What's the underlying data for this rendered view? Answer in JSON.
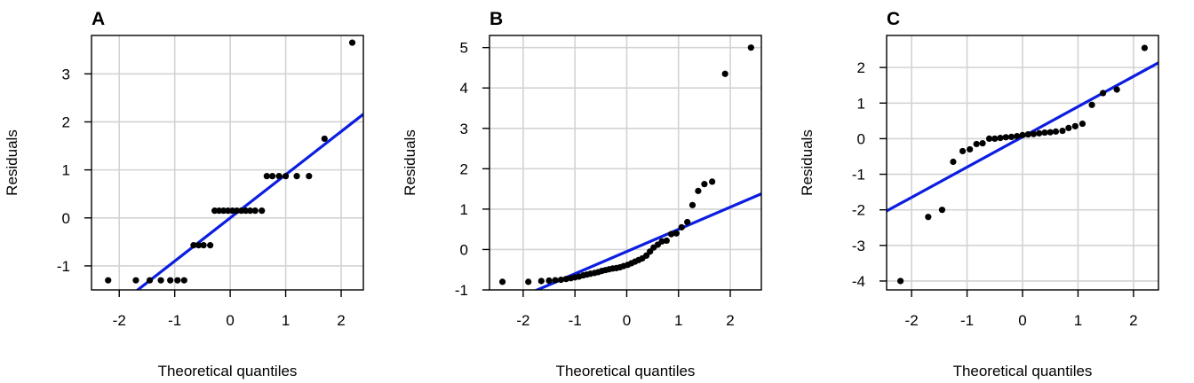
{
  "chart_data": [
    {
      "type": "scatter",
      "label": "A",
      "xlabel": "Theoretical quantiles",
      "ylabel": "Residuals",
      "xlim": [
        -2.5,
        2.4
      ],
      "ylim": [
        -1.5,
        3.8
      ],
      "xticks": [
        -2,
        -1,
        0,
        1,
        2
      ],
      "yticks": [
        -1,
        0,
        1,
        2,
        3
      ],
      "reference_line": {
        "intercept": 0.0,
        "slope": 0.9
      },
      "points": [
        [
          -2.2,
          -1.3
        ],
        [
          -1.7,
          -1.3
        ],
        [
          -1.45,
          -1.3
        ],
        [
          -1.25,
          -1.3
        ],
        [
          -1.08,
          -1.3
        ],
        [
          -0.95,
          -1.3
        ],
        [
          -0.83,
          -1.3
        ],
        [
          -0.66,
          -0.57
        ],
        [
          -0.57,
          -0.57
        ],
        [
          -0.48,
          -0.57
        ],
        [
          -0.36,
          -0.57
        ],
        [
          -0.28,
          0.15
        ],
        [
          -0.2,
          0.15
        ],
        [
          -0.12,
          0.15
        ],
        [
          -0.04,
          0.15
        ],
        [
          0.04,
          0.15
        ],
        [
          0.12,
          0.15
        ],
        [
          0.2,
          0.15
        ],
        [
          0.28,
          0.15
        ],
        [
          0.36,
          0.15
        ],
        [
          0.45,
          0.15
        ],
        [
          0.57,
          0.15
        ],
        [
          0.66,
          0.87
        ],
        [
          0.76,
          0.87
        ],
        [
          0.88,
          0.87
        ],
        [
          1.0,
          0.87
        ],
        [
          1.2,
          0.87
        ],
        [
          1.42,
          0.87
        ],
        [
          1.7,
          1.65
        ],
        [
          2.2,
          3.65
        ]
      ]
    },
    {
      "type": "scatter",
      "label": "B",
      "xlabel": "Theoretical quantiles",
      "ylabel": "Residuals",
      "xlim": [
        -2.65,
        2.6
      ],
      "ylim": [
        -1.0,
        5.3
      ],
      "xticks": [
        -2,
        -1,
        0,
        1,
        2
      ],
      "yticks": [
        -1,
        0,
        1,
        2,
        3,
        4,
        5
      ],
      "reference_line": {
        "intercept": -0.05,
        "slope": 0.55
      },
      "points": [
        [
          -2.4,
          -0.8
        ],
        [
          -1.9,
          -0.8
        ],
        [
          -1.65,
          -0.78
        ],
        [
          -1.5,
          -0.77
        ],
        [
          -1.38,
          -0.76
        ],
        [
          -1.27,
          -0.75
        ],
        [
          -1.17,
          -0.73
        ],
        [
          -1.08,
          -0.71
        ],
        [
          -1.0,
          -0.69
        ],
        [
          -0.92,
          -0.67
        ],
        [
          -0.84,
          -0.64
        ],
        [
          -0.77,
          -0.62
        ],
        [
          -0.7,
          -0.6
        ],
        [
          -0.62,
          -0.58
        ],
        [
          -0.55,
          -0.56
        ],
        [
          -0.48,
          -0.53
        ],
        [
          -0.41,
          -0.51
        ],
        [
          -0.34,
          -0.49
        ],
        [
          -0.27,
          -0.47
        ],
        [
          -0.2,
          -0.46
        ],
        [
          -0.13,
          -0.44
        ],
        [
          -0.06,
          -0.41
        ],
        [
          0.02,
          -0.38
        ],
        [
          0.09,
          -0.34
        ],
        [
          0.16,
          -0.3
        ],
        [
          0.23,
          -0.26
        ],
        [
          0.3,
          -0.22
        ],
        [
          0.38,
          -0.15
        ],
        [
          0.45,
          -0.05
        ],
        [
          0.52,
          0.05
        ],
        [
          0.6,
          0.12
        ],
        [
          0.68,
          0.2
        ],
        [
          0.77,
          0.22
        ],
        [
          0.86,
          0.38
        ],
        [
          0.96,
          0.4
        ],
        [
          1.06,
          0.55
        ],
        [
          1.17,
          0.68
        ],
        [
          1.27,
          1.1
        ],
        [
          1.38,
          1.45
        ],
        [
          1.5,
          1.62
        ],
        [
          1.65,
          1.68
        ],
        [
          1.9,
          4.35
        ],
        [
          2.4,
          5.0
        ]
      ]
    },
    {
      "type": "scatter",
      "label": "C",
      "xlabel": "Theoretical quantiles",
      "ylabel": "Residuals",
      "xlim": [
        -2.45,
        2.45
      ],
      "ylim": [
        -4.25,
        2.9
      ],
      "xticks": [
        -2,
        -1,
        0,
        1,
        2
      ],
      "yticks": [
        -4,
        -3,
        -2,
        -1,
        0,
        1,
        2
      ],
      "reference_line": {
        "intercept": 0.05,
        "slope": 0.85
      },
      "points": [
        [
          -2.2,
          -4.0
        ],
        [
          -1.7,
          -2.2
        ],
        [
          -1.45,
          -2.0
        ],
        [
          -1.25,
          -0.65
        ],
        [
          -1.08,
          -0.35
        ],
        [
          -0.95,
          -0.3
        ],
        [
          -0.83,
          -0.15
        ],
        [
          -0.72,
          -0.13
        ],
        [
          -0.6,
          0.0
        ],
        [
          -0.5,
          0.0
        ],
        [
          -0.4,
          0.02
        ],
        [
          -0.3,
          0.04
        ],
        [
          -0.2,
          0.05
        ],
        [
          -0.1,
          0.07
        ],
        [
          0.0,
          0.1
        ],
        [
          0.1,
          0.12
        ],
        [
          0.2,
          0.13
        ],
        [
          0.3,
          0.15
        ],
        [
          0.4,
          0.17
        ],
        [
          0.5,
          0.18
        ],
        [
          0.6,
          0.2
        ],
        [
          0.72,
          0.22
        ],
        [
          0.83,
          0.3
        ],
        [
          0.95,
          0.35
        ],
        [
          1.08,
          0.42
        ],
        [
          1.25,
          0.95
        ],
        [
          1.45,
          1.28
        ],
        [
          1.7,
          1.38
        ],
        [
          2.2,
          2.55
        ]
      ]
    }
  ]
}
